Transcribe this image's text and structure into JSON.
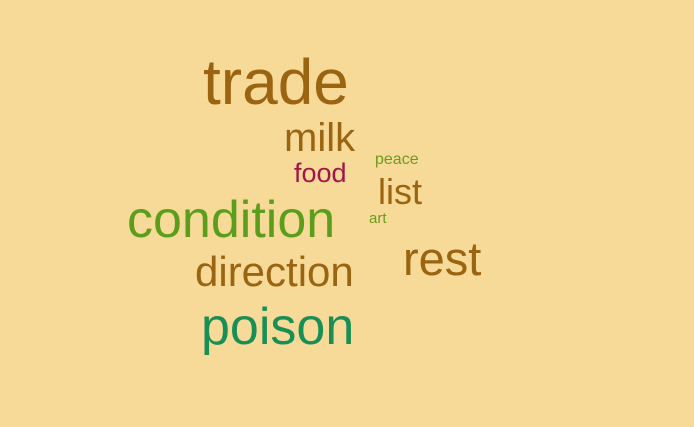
{
  "background_color": "#f8da98",
  "words": [
    {
      "text": "trade",
      "color": "#9a6410"
    },
    {
      "text": "milk",
      "color": "#9a6410"
    },
    {
      "text": "food",
      "color": "#a3154a"
    },
    {
      "text": "peace",
      "color": "#6a9c1f"
    },
    {
      "text": "list",
      "color": "#9a6410"
    },
    {
      "text": "condition",
      "color": "#5a9e1c"
    },
    {
      "text": "art",
      "color": "#6a9c1f"
    },
    {
      "text": "rest",
      "color": "#9a6410"
    },
    {
      "text": "direction",
      "color": "#9a6410"
    },
    {
      "text": "poison",
      "color": "#1a8f55"
    }
  ]
}
